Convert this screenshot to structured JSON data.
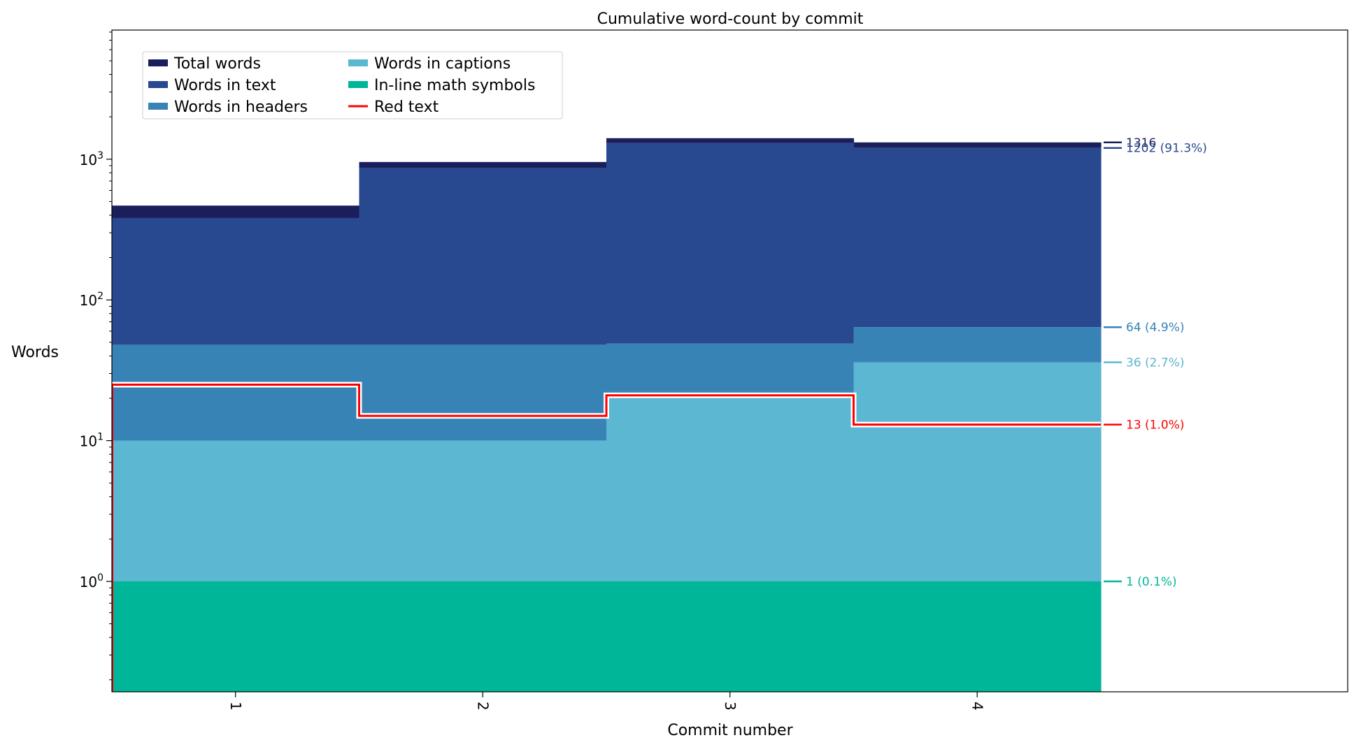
{
  "chart_data": {
    "type": "area",
    "step": true,
    "title": "Cumulative word-count by commit",
    "xlabel": "Commit number",
    "ylabel": "Words",
    "yscale": "log",
    "grid": false,
    "legend_position": "top-left",
    "x": [
      1,
      2,
      3,
      4
    ],
    "x_tick_labels": [
      "1",
      "2",
      "3",
      "4"
    ],
    "y_tick_labels": [
      {
        "base": "10",
        "exp": "0"
      },
      {
        "base": "10",
        "exp": "1"
      },
      {
        "base": "10",
        "exp": "2"
      },
      {
        "base": "10",
        "exp": "3"
      }
    ],
    "series": [
      {
        "name": "Total words",
        "color": "#1a1f5c",
        "kind": "area",
        "values": [
          468,
          955,
          1410,
          1316
        ],
        "end_label": "1316"
      },
      {
        "name": "Words in text",
        "color": "#28488f",
        "kind": "area",
        "values": [
          382,
          870,
          1300,
          1202
        ],
        "end_label": "1202 (91.3%)"
      },
      {
        "name": "Words in headers",
        "color": "#3883b5",
        "kind": "area",
        "values": [
          48,
          48,
          49,
          64
        ],
        "end_label": "64 (4.9%)"
      },
      {
        "name": "Words in captions",
        "color": "#5bb7d2",
        "kind": "area",
        "values": [
          10,
          10,
          20,
          36
        ],
        "end_label": "36 (2.7%)"
      },
      {
        "name": "In-line math symbols",
        "color": "#00b698",
        "kind": "area",
        "values": [
          1,
          1,
          1,
          1
        ],
        "end_label": "1 (0.1%)"
      },
      {
        "name": "Red text",
        "color": "#ff0000",
        "kind": "line",
        "values": [
          25,
          15,
          21,
          13
        ],
        "end_label": "13 (1.0%)"
      }
    ],
    "headers_extra_band": [
      24,
      0,
      0,
      0
    ]
  }
}
